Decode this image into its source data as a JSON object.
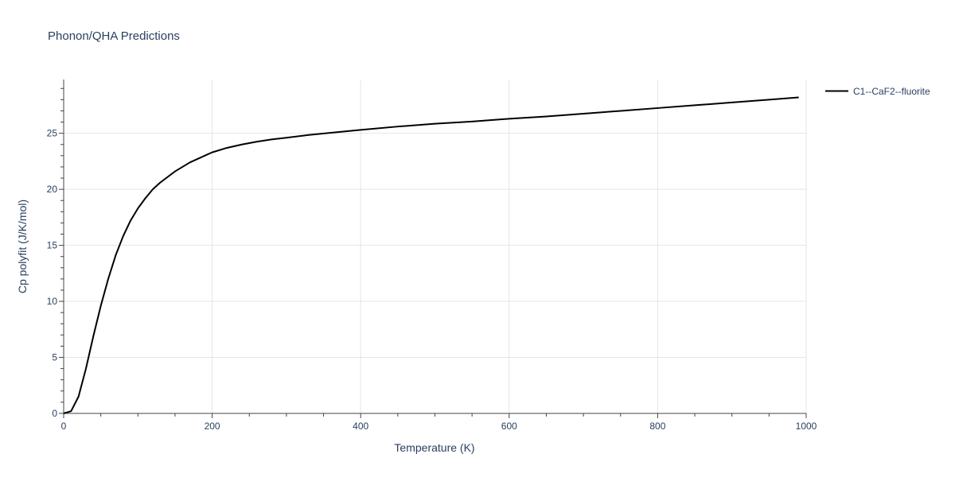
{
  "chart_data": {
    "type": "line",
    "title": "Phonon/QHA Predictions",
    "xlabel": "Temperature (K)",
    "ylabel": "Cp polyfit (J/K/mol)",
    "xlim": [
      0,
      1000
    ],
    "ylim": [
      0,
      29.8
    ],
    "xticks": [
      0,
      200,
      400,
      600,
      800,
      1000
    ],
    "yticks": [
      0,
      5,
      10,
      15,
      20,
      25
    ],
    "x_minor_step": 50,
    "y_minor_step": 1,
    "grid": true,
    "legend_position": "top-right",
    "series": [
      {
        "name": "C1--CaF2--fluorite",
        "color": "#000000",
        "x": [
          0,
          10,
          20,
          30,
          40,
          50,
          60,
          70,
          80,
          90,
          100,
          110,
          120,
          130,
          140,
          150,
          160,
          170,
          180,
          190,
          200,
          220,
          240,
          260,
          280,
          300,
          330,
          360,
          400,
          450,
          500,
          550,
          600,
          650,
          700,
          750,
          800,
          850,
          900,
          950,
          990
        ],
        "y": [
          0,
          0.2,
          1.5,
          4.0,
          6.9,
          9.6,
          12.0,
          14.1,
          15.8,
          17.2,
          18.3,
          19.2,
          20.0,
          20.6,
          21.1,
          21.6,
          22.0,
          22.4,
          22.7,
          23.0,
          23.3,
          23.7,
          24.0,
          24.25,
          24.45,
          24.6,
          24.85,
          25.05,
          25.3,
          25.6,
          25.85,
          26.05,
          26.3,
          26.5,
          26.75,
          27.0,
          27.25,
          27.5,
          27.75,
          28.0,
          28.2
        ]
      }
    ]
  }
}
